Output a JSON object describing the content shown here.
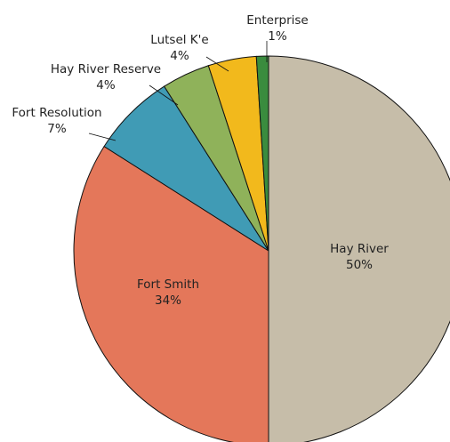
{
  "chart_data": {
    "type": "pie",
    "categories": [
      "Hay River",
      "Fort Smith",
      "Fort Resolution",
      "Hay River Reserve",
      "Lutsel K'e",
      "Enterprise"
    ],
    "values": [
      50,
      34,
      7,
      4,
      4,
      1
    ],
    "value_labels": [
      "50%",
      "34%",
      "7%",
      "4%",
      "4%",
      "1%"
    ],
    "colors": [
      "#c6bda9",
      "#e4775a",
      "#409bb5",
      "#8fb25a",
      "#f2b91c",
      "#3a8c3e"
    ]
  }
}
